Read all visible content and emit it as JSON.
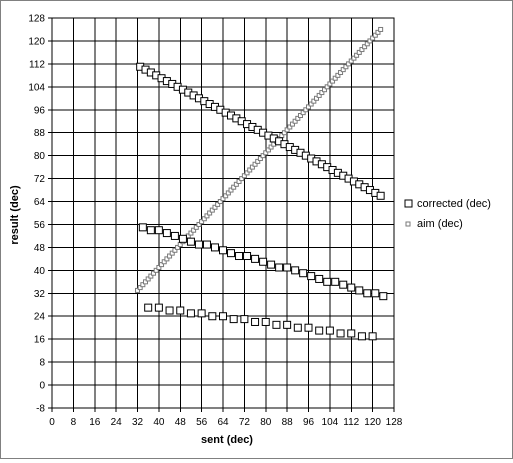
{
  "chart_data": {
    "type": "scatter",
    "title": "",
    "xlabel": "sent (dec)",
    "ylabel": "result (dec)",
    "xlim": [
      0,
      128
    ],
    "ylim": [
      -8,
      128
    ],
    "xticks": [
      0,
      8,
      16,
      24,
      32,
      40,
      48,
      56,
      64,
      72,
      80,
      88,
      96,
      104,
      112,
      120,
      128
    ],
    "yticks": [
      -8,
      0,
      8,
      16,
      24,
      32,
      40,
      48,
      56,
      64,
      72,
      80,
      88,
      96,
      104,
      112,
      120,
      128
    ],
    "grid": true,
    "legend_position": "right",
    "series": [
      {
        "name": "corrected (dec)",
        "marker": "open-square",
        "color": "#000000",
        "x": [
          33,
          35,
          37,
          39,
          41,
          43,
          45,
          47,
          49,
          51,
          53,
          55,
          57,
          59,
          61,
          63,
          65,
          67,
          69,
          71,
          73,
          75,
          77,
          79,
          81,
          83,
          85,
          87,
          89,
          91,
          93,
          95,
          97,
          99,
          101,
          103,
          105,
          107,
          109,
          111,
          113,
          115,
          117,
          119,
          121,
          123,
          34,
          37,
          40,
          43,
          46,
          49,
          52,
          55,
          58,
          61,
          64,
          67,
          70,
          73,
          76,
          79,
          82,
          85,
          88,
          91,
          94,
          97,
          100,
          103,
          106,
          109,
          112,
          115,
          118,
          121,
          124,
          36,
          40,
          44,
          48,
          52,
          56,
          60,
          64,
          68,
          72,
          76,
          80,
          84,
          88,
          92,
          96,
          100,
          104,
          108,
          112,
          116,
          120
        ],
        "y": [
          111,
          110,
          109,
          108,
          107,
          106,
          105,
          104,
          103,
          102,
          101,
          100,
          99,
          98,
          97,
          96,
          95,
          94,
          93,
          92,
          91,
          90,
          89,
          88,
          87,
          86,
          85,
          84,
          83,
          82,
          81,
          80,
          79,
          78,
          77,
          76,
          75,
          74,
          73,
          72,
          71,
          70,
          69,
          68,
          67,
          66,
          55,
          54,
          54,
          53,
          52,
          51,
          50,
          49,
          49,
          48,
          47,
          46,
          45,
          45,
          44,
          43,
          42,
          41,
          41,
          40,
          39,
          38,
          37,
          36,
          36,
          35,
          34,
          33,
          32,
          32,
          31,
          27,
          27,
          26,
          26,
          25,
          25,
          24,
          24,
          23,
          23,
          22,
          22,
          21,
          21,
          20,
          20,
          19,
          19,
          18,
          18,
          17,
          17
        ]
      },
      {
        "name": "aim (dec)",
        "marker": "small-dot",
        "color": "#7a7a7a",
        "x": [
          32,
          33,
          34,
          35,
          36,
          37,
          38,
          39,
          40,
          41,
          42,
          43,
          44,
          45,
          46,
          47,
          48,
          49,
          50,
          51,
          52,
          53,
          54,
          55,
          56,
          57,
          58,
          59,
          60,
          61,
          62,
          63,
          64,
          65,
          66,
          67,
          68,
          69,
          70,
          71,
          72,
          73,
          74,
          75,
          76,
          77,
          78,
          79,
          80,
          81,
          82,
          83,
          84,
          85,
          86,
          87,
          88,
          89,
          90,
          91,
          92,
          93,
          94,
          95,
          96,
          97,
          98,
          99,
          100,
          101,
          102,
          103,
          104,
          105,
          106,
          107,
          108,
          109,
          110,
          111,
          112,
          113,
          114,
          115,
          116,
          117,
          118,
          119,
          120,
          121,
          122,
          123
        ],
        "y": [
          33,
          34,
          35,
          36,
          37,
          38,
          39,
          40,
          41,
          42,
          43,
          44,
          45,
          46,
          47,
          48,
          49,
          50,
          51,
          52,
          53,
          54,
          55,
          56,
          57,
          58,
          59,
          60,
          61,
          62,
          63,
          64,
          65,
          66,
          67,
          68,
          69,
          70,
          71,
          72,
          73,
          74,
          75,
          76,
          77,
          78,
          79,
          80,
          81,
          82,
          83,
          84,
          85,
          86,
          87,
          88,
          89,
          90,
          91,
          92,
          93,
          94,
          95,
          96,
          97,
          98,
          99,
          100,
          101,
          102,
          103,
          104,
          105,
          106,
          107,
          108,
          109,
          110,
          111,
          112,
          113,
          114,
          115,
          116,
          117,
          118,
          119,
          120,
          121,
          122,
          123,
          124
        ]
      }
    ]
  }
}
